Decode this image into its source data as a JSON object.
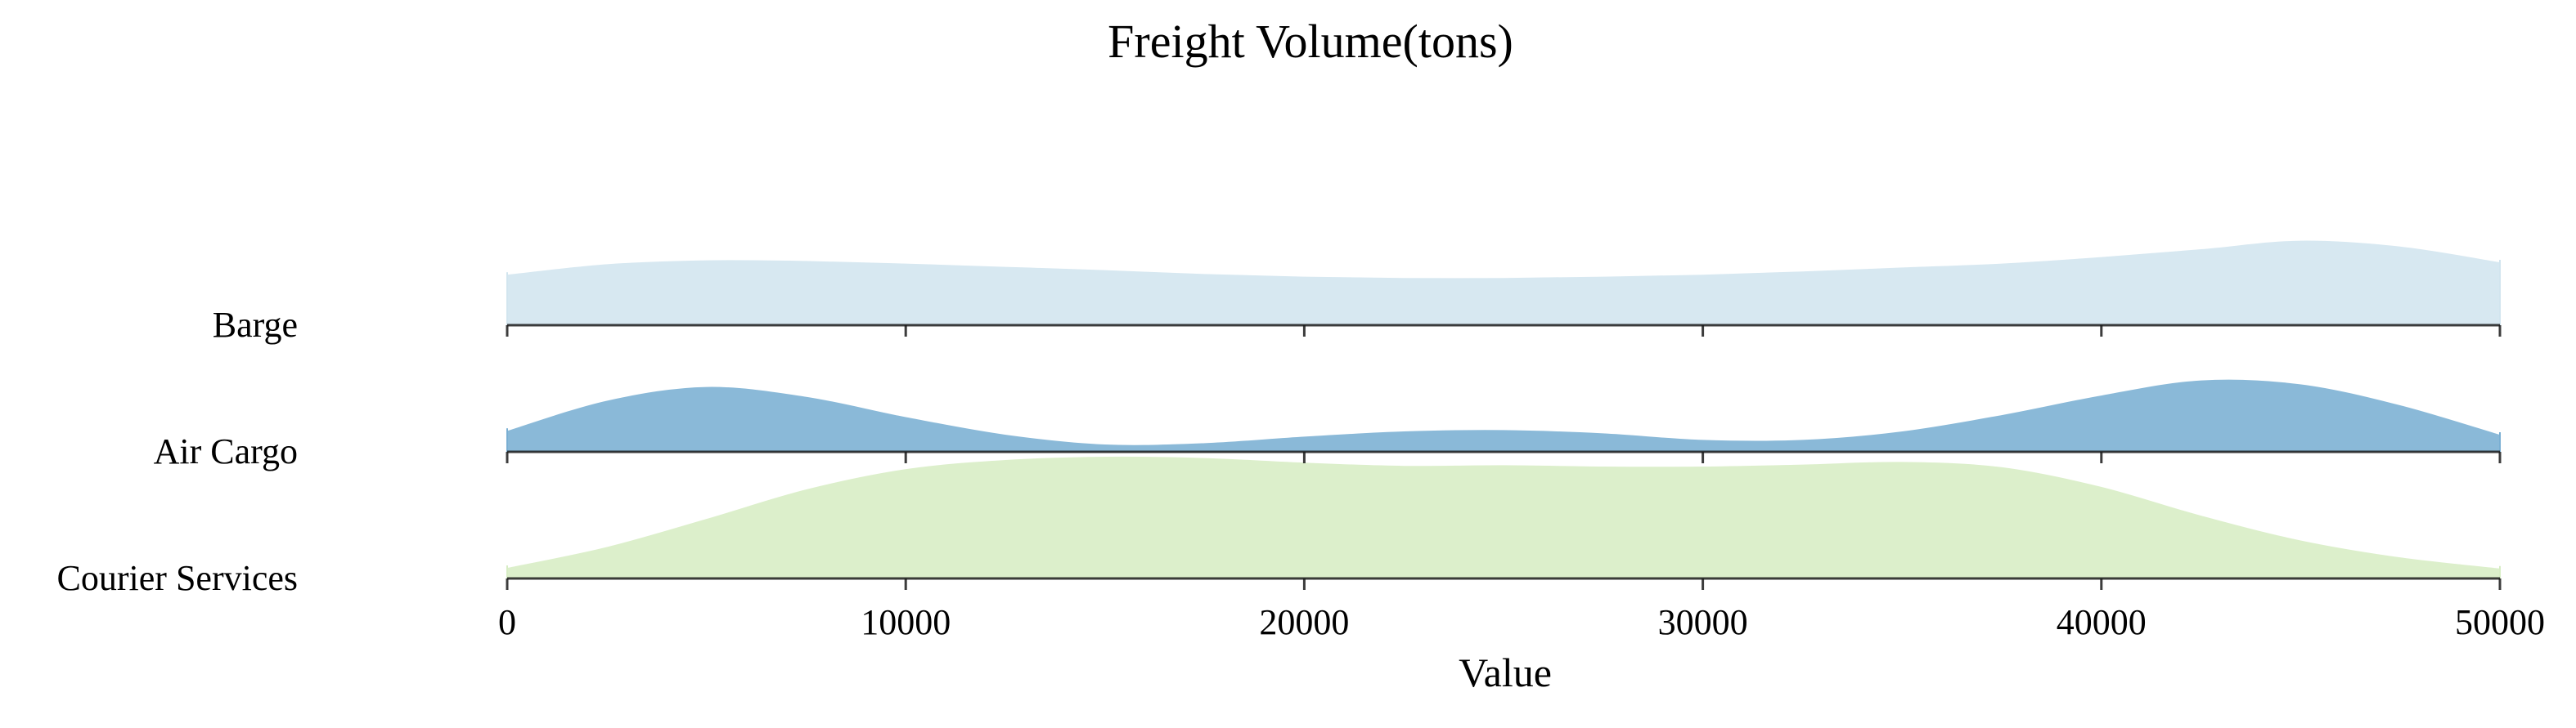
{
  "chart_data": {
    "type": "ridgeline",
    "title": "Freight Volume(tons)",
    "xlabel": "Value",
    "ylabel": "",
    "xlim": [
      0,
      50000
    ],
    "x_ticks": [
      "0",
      "10000",
      "20000",
      "30000",
      "40000",
      "50000"
    ],
    "x_tick_values": [
      0,
      10000,
      20000,
      30000,
      40000,
      50000
    ],
    "grid": false,
    "legend": "none",
    "categories": [
      "Barge",
      "Air Cargo",
      "Courier Services"
    ],
    "x": [
      0,
      2500,
      5000,
      7500,
      10000,
      12500,
      15000,
      17500,
      20000,
      22500,
      25000,
      27500,
      30000,
      32500,
      35000,
      37500,
      40000,
      42500,
      45000,
      47500,
      50000
    ],
    "series": [
      {
        "name": "Barge",
        "color": "#d2e5ef",
        "values": [
          0.81,
          0.97,
          1.03,
          1.02,
          0.98,
          0.93,
          0.88,
          0.82,
          0.78,
          0.76,
          0.76,
          0.78,
          0.81,
          0.86,
          0.92,
          0.98,
          1.08,
          1.2,
          1.33,
          1.24,
          1.0
        ]
      },
      {
        "name": "Air Cargo",
        "color": "#7aafd3",
        "values": [
          0.36,
          0.82,
          1.03,
          0.88,
          0.57,
          0.3,
          0.15,
          0.17,
          0.27,
          0.35,
          0.37,
          0.32,
          0.22,
          0.22,
          0.35,
          0.6,
          0.9,
          1.13,
          1.07,
          0.75,
          0.3
        ]
      },
      {
        "name": "Courier Services",
        "color": "#d7edc4",
        "values": [
          0.2,
          0.52,
          0.95,
          1.4,
          1.71,
          1.85,
          1.9,
          1.88,
          1.81,
          1.76,
          1.77,
          1.75,
          1.75,
          1.78,
          1.82,
          1.74,
          1.44,
          1.0,
          0.62,
          0.36,
          0.19
        ]
      }
    ],
    "ridge_overlap_colors": [
      "#8fbbdc",
      "#a2cbb0"
    ]
  }
}
